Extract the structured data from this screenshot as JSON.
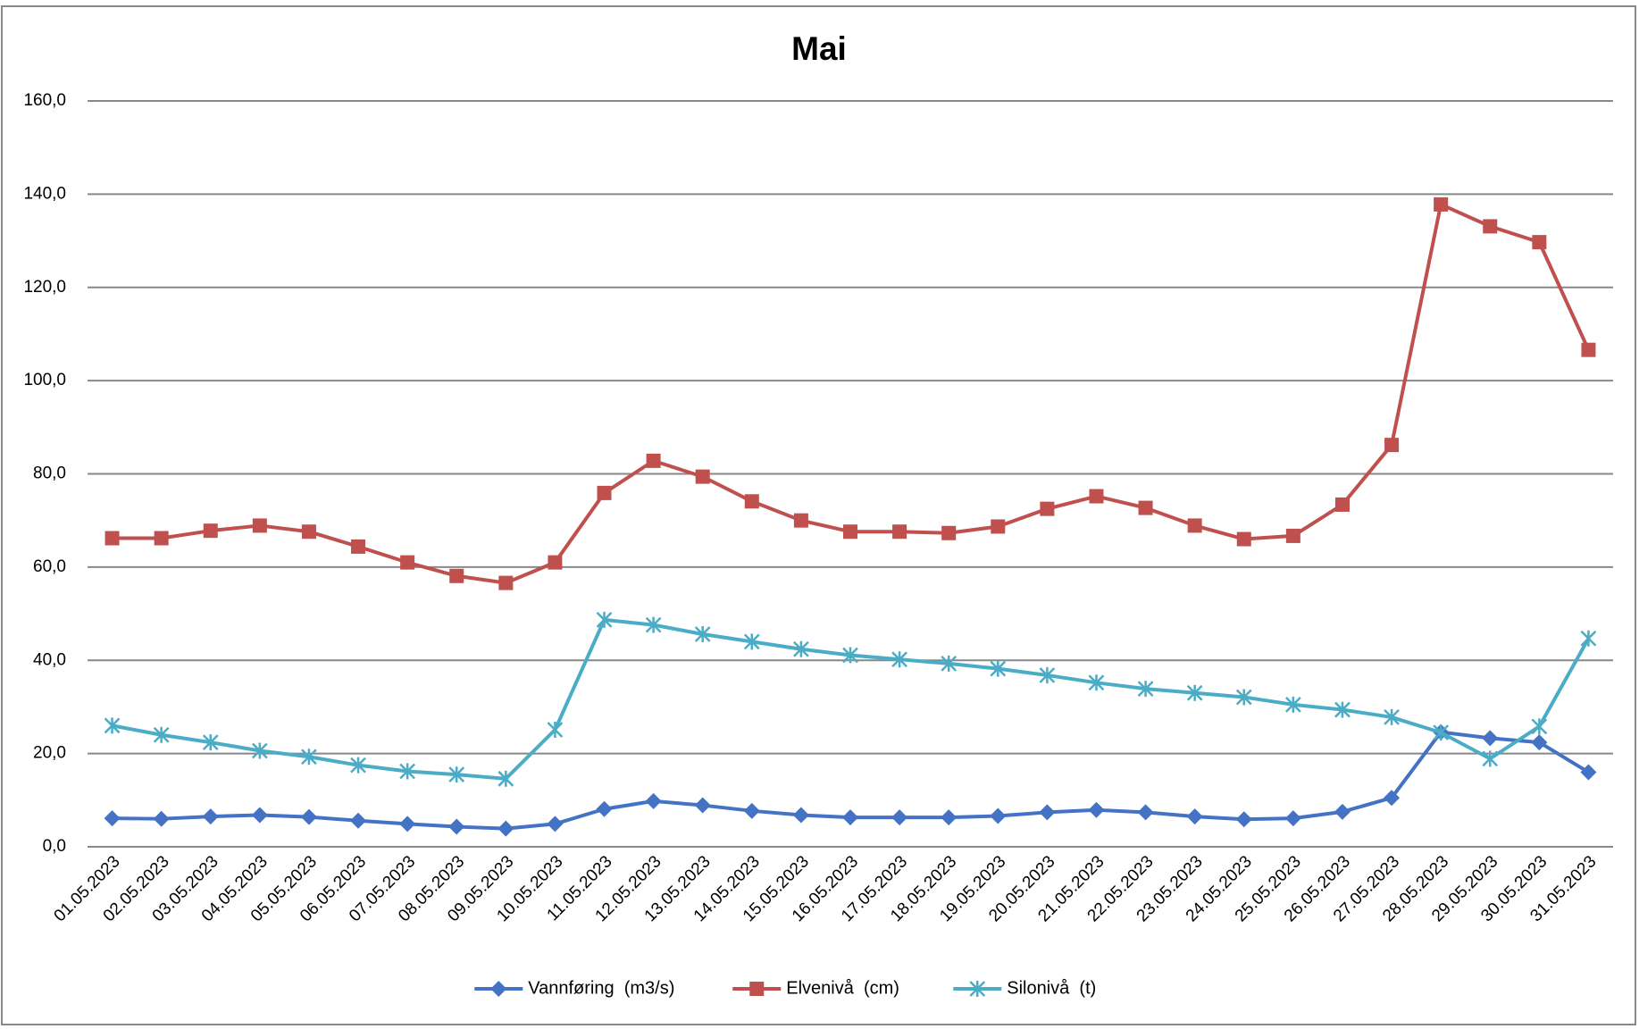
{
  "chart_data": {
    "type": "line",
    "title": "Mai",
    "categories": [
      "01.05.2023",
      "02.05.2023",
      "03.05.2023",
      "04.05.2023",
      "05.05.2023",
      "06.05.2023",
      "07.05.2023",
      "08.05.2023",
      "09.05.2023",
      "10.05.2023",
      "11.05.2023",
      "12.05.2023",
      "13.05.2023",
      "14.05.2023",
      "15.05.2023",
      "16.05.2023",
      "17.05.2023",
      "18.05.2023",
      "19.05.2023",
      "20.05.2023",
      "21.05.2023",
      "22.05.2023",
      "23.05.2023",
      "24.05.2023",
      "25.05.2023",
      "26.05.2023",
      "27.05.2023",
      "28.05.2023",
      "29.05.2023",
      "30.05.2023",
      "31.05.2023"
    ],
    "series": [
      {
        "name": "Vannføring  (m3/s)",
        "color": "#4472c4",
        "marker": "diamond",
        "values": [
          6.1,
          6.0,
          6.5,
          6.8,
          6.4,
          5.6,
          4.9,
          4.3,
          3.9,
          4.9,
          8.1,
          9.8,
          8.9,
          7.7,
          6.8,
          6.3,
          6.3,
          6.3,
          6.6,
          7.4,
          7.9,
          7.4,
          6.5,
          5.9,
          6.1,
          7.5,
          10.5,
          24.6,
          23.3,
          22.4,
          16.0
        ]
      },
      {
        "name": "Elvenivå  (cm)",
        "color": "#c0504d",
        "marker": "square",
        "values": [
          66.2,
          66.2,
          67.8,
          68.9,
          67.6,
          64.4,
          61.0,
          58.1,
          56.6,
          61.0,
          75.9,
          82.8,
          79.4,
          74.1,
          70.0,
          67.6,
          67.6,
          67.3,
          68.7,
          72.5,
          75.2,
          72.7,
          68.9,
          66.0,
          66.7,
          73.4,
          86.2,
          137.8,
          133.1,
          129.7,
          106.6
        ]
      },
      {
        "name": "Silonivå  (t)",
        "color": "#4bacc6",
        "marker": "star",
        "values": [
          26.0,
          24.0,
          22.4,
          20.6,
          19.3,
          17.5,
          16.2,
          15.5,
          14.6,
          25.1,
          48.7,
          47.6,
          45.6,
          44.0,
          42.4,
          41.1,
          40.2,
          39.3,
          38.2,
          36.8,
          35.2,
          33.9,
          33.0,
          32.1,
          30.5,
          29.4,
          27.8,
          24.5,
          18.9,
          25.8,
          44.7
        ]
      }
    ],
    "ylim": [
      0,
      160
    ],
    "yticks": [
      {
        "value": 0,
        "label": "0,0"
      },
      {
        "value": 20,
        "label": "20,0"
      },
      {
        "value": 40,
        "label": "40,0"
      },
      {
        "value": 60,
        "label": "60,0"
      },
      {
        "value": 80,
        "label": "80,0"
      },
      {
        "value": 100,
        "label": "100,0"
      },
      {
        "value": 120,
        "label": "120,0"
      },
      {
        "value": 140,
        "label": "140,0"
      },
      {
        "value": 160,
        "label": "160,0"
      }
    ],
    "grid": true,
    "legend": "bottom"
  }
}
